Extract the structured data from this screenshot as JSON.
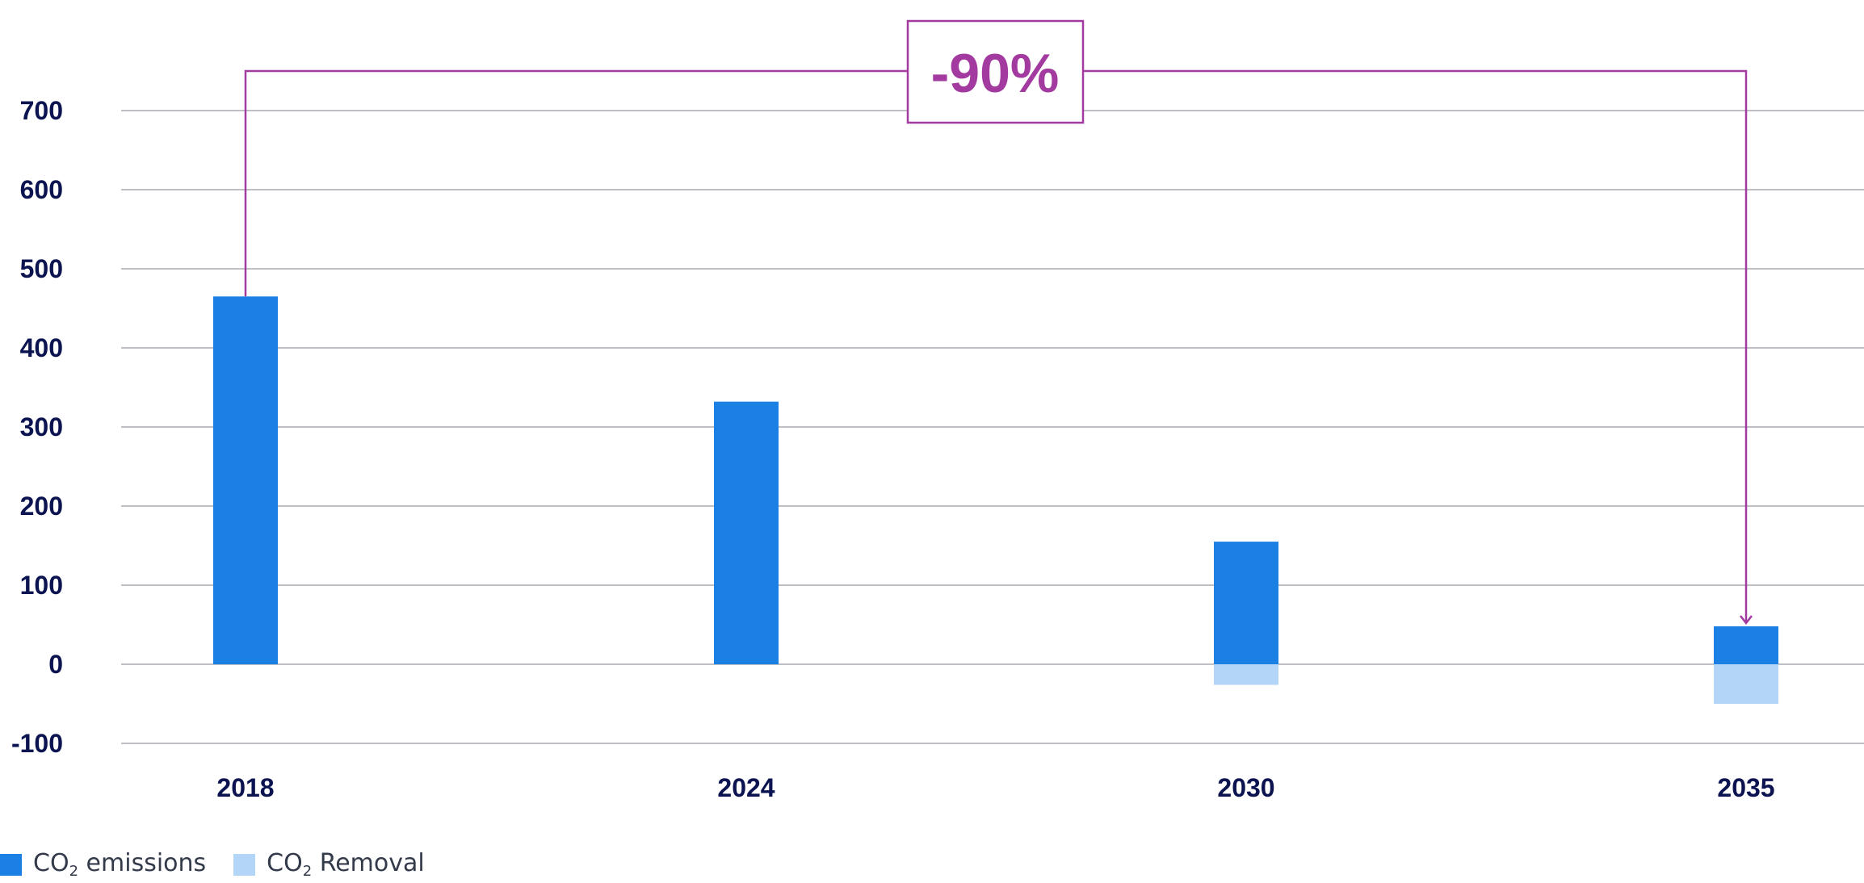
{
  "chart_data": {
    "type": "bar",
    "categories": [
      "2018",
      "2024",
      "2030",
      "2035"
    ],
    "series": [
      {
        "name": "CO₂ emissions",
        "values": [
          465,
          332,
          155,
          48
        ],
        "color": "#1a80e3"
      },
      {
        "name": "CO₂ Removal",
        "values": [
          0,
          0,
          -26,
          -50
        ],
        "color": "#b3d5f7"
      }
    ],
    "stacked": true,
    "ylim": [
      -100,
      700
    ],
    "yticks": [
      700,
      600,
      500,
      400,
      300,
      200,
      100,
      0,
      -100
    ],
    "grid": true,
    "legend_position": "bottom-left",
    "annotation": {
      "label": "-90%",
      "from": "2018",
      "to": "2035",
      "color": "#a23aa0"
    }
  },
  "legend": {
    "item1_prefix": "CO",
    "item1_sub": "2",
    "item1_suffix": " emissions",
    "item2_prefix": "CO",
    "item2_sub": "2",
    "item2_suffix": " Removal"
  }
}
